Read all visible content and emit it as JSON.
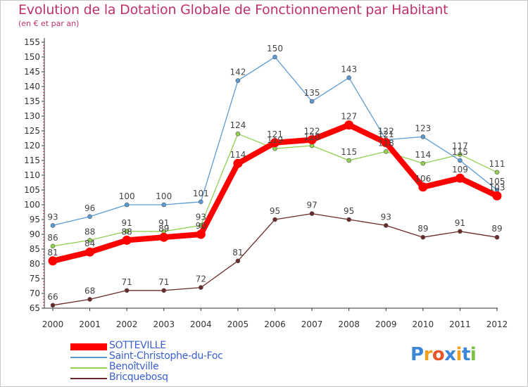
{
  "chart_data": {
    "type": "line",
    "title": "Evolution de la Dotation Globale de Fonctionnement par Habitant",
    "subtitle": "(en € et par an)",
    "xlabel": "",
    "ylabel": "",
    "x": [
      "2000",
      "2001",
      "2002",
      "2003",
      "2004",
      "2005",
      "2006",
      "2007",
      "2008",
      "2009",
      "2010",
      "2011",
      "2012"
    ],
    "ylim": [
      65,
      155
    ],
    "yticks": [
      65,
      70,
      75,
      80,
      85,
      90,
      95,
      100,
      105,
      110,
      115,
      120,
      125,
      130,
      135,
      140,
      145,
      150,
      155
    ],
    "grid": false,
    "legend_position": "bottom-left",
    "series": [
      {
        "name": "SOTTEVILLE",
        "color": "#ff0000",
        "values": [
          81,
          84,
          88,
          89,
          90,
          114,
          121,
          122,
          127,
          121,
          106,
          109,
          103
        ]
      },
      {
        "name": "Saint-Christophe-du-Foc",
        "color": "#5b9bd5",
        "values": [
          93,
          96,
          100,
          100,
          101,
          142,
          150,
          135,
          143,
          122,
          123,
          115,
          105
        ]
      },
      {
        "name": "Benoîtville",
        "color": "#92d050",
        "values": [
          86,
          88,
          91,
          91,
          93,
          124,
          119,
          120,
          115,
          118,
          114,
          117,
          111
        ]
      },
      {
        "name": "Bricquebosq",
        "color": "#6b2a2a",
        "values": [
          66,
          68,
          71,
          71,
          72,
          81,
          95,
          97,
          95,
          93,
          89,
          91,
          89
        ]
      }
    ]
  },
  "logo": {
    "letters": [
      "P",
      "r",
      "o",
      "x",
      "i",
      "t",
      "i"
    ],
    "colors": [
      "#3b86d6",
      "#f0a020",
      "#e5562a",
      "#3b86d6",
      "#f0a020",
      "#3b86d6",
      "#7bc043"
    ]
  }
}
